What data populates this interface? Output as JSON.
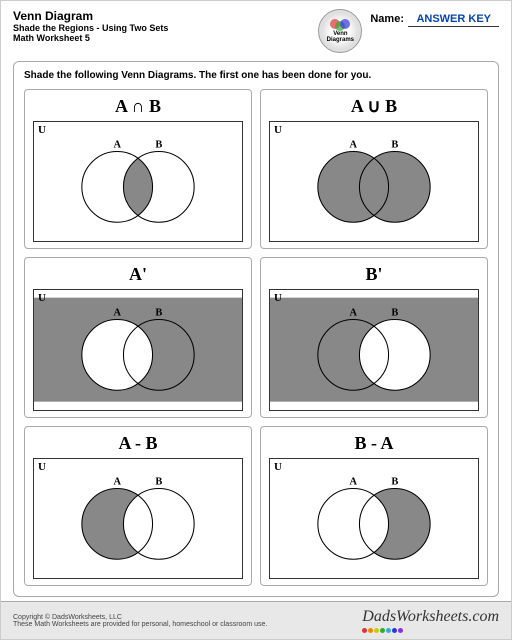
{
  "header": {
    "title": "Venn Diagram",
    "subtitle1": "Shade the Regions - Using Two Sets",
    "subtitle2": "Math Worksheet 5",
    "logo_text1": "Venn",
    "logo_text2": "Diagrams",
    "name_label": "Name:",
    "answer_key": "ANSWER KEY"
  },
  "instructions": "Shade the following Venn Diagrams.  The first one has been done for you.",
  "universal_label": "U",
  "circle_a_label": "A",
  "circle_b_label": "B",
  "cells": [
    {
      "title": "A ∩ B",
      "shade": "intersection"
    },
    {
      "title": "A ∪ B",
      "shade": "union"
    },
    {
      "title": "A'",
      "shade": "a-complement"
    },
    {
      "title": "B'",
      "shade": "b-complement"
    },
    {
      "title": "A - B",
      "shade": "a-minus-b"
    },
    {
      "title": "B - A",
      "shade": "b-minus-a"
    }
  ],
  "footer": {
    "copyright": "Copyright © DadsWorksheets, LLC",
    "note": "These Math Worksheets are provided for personal, homeschool or classroom use.",
    "brand": "DadsWorksheets.com"
  },
  "style": {
    "shade_color": "#888888",
    "circle_stroke": "#000000",
    "circle_fill_unshaded": "#ffffff",
    "box_bg": "#ffffff",
    "dot_colors": [
      "#d33",
      "#e80",
      "#cc0",
      "#3a3",
      "#3ad",
      "#33d",
      "#83d"
    ]
  }
}
